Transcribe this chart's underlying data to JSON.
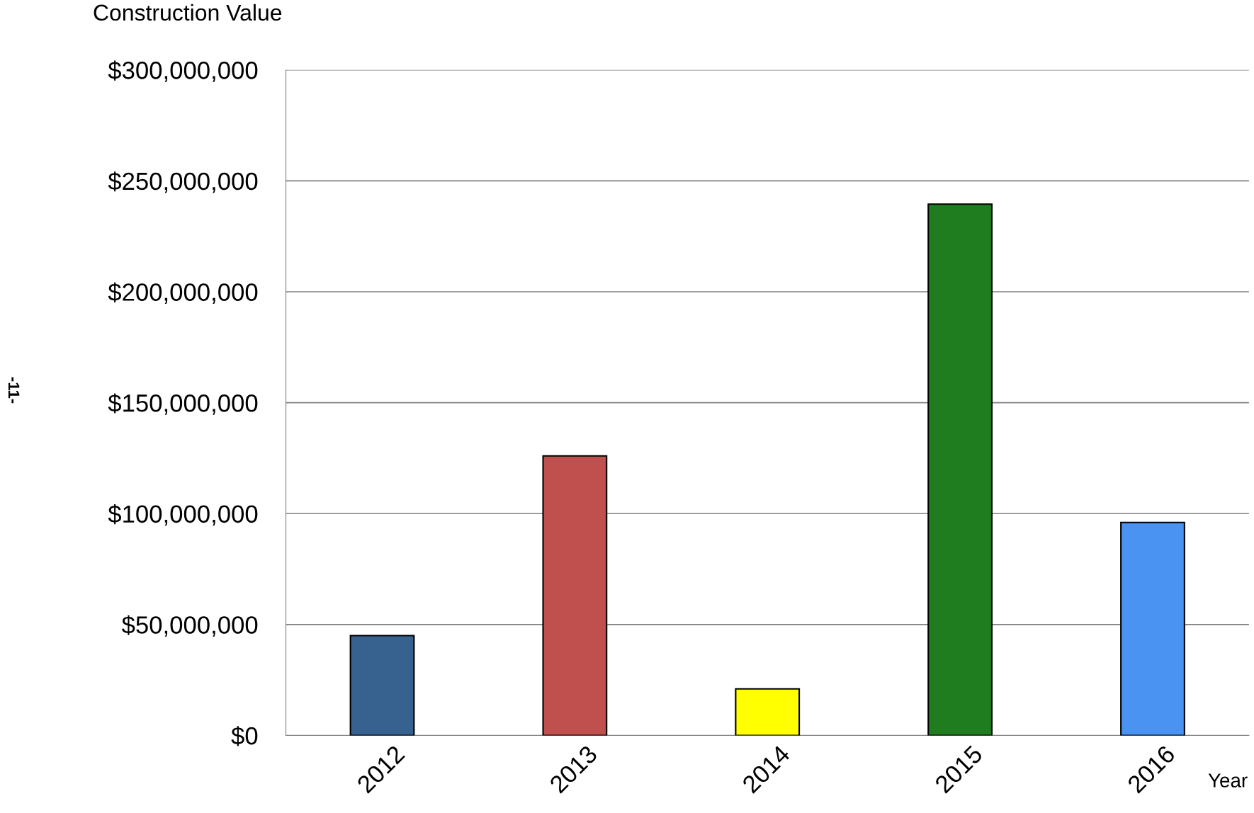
{
  "chart_data": {
    "type": "bar",
    "ylabel": "Construction Value",
    "xlabel": "Year",
    "categories": [
      "2012",
      "2013",
      "2014",
      "2015",
      "2016"
    ],
    "values": [
      45000000,
      126000000,
      21000000,
      239500000,
      96000000
    ],
    "colors": [
      "#37618f",
      "#c0504d",
      "#ffff00",
      "#1f7d1f",
      "#4a93f2"
    ],
    "ylim": [
      0,
      300000000
    ],
    "yticks": [
      {
        "value": 0,
        "label": "$0"
      },
      {
        "value": 50000000,
        "label": "$50,000,000"
      },
      {
        "value": 100000000,
        "label": "$100,000,000"
      },
      {
        "value": 150000000,
        "label": "$150,000,000"
      },
      {
        "value": 200000000,
        "label": "$200,000,000"
      },
      {
        "value": 250000000,
        "label": "$250,000,000"
      },
      {
        "value": 300000000,
        "label": "$300,000,000"
      }
    ],
    "grid": "y",
    "legend": false,
    "annotations": [
      "-11-"
    ]
  }
}
